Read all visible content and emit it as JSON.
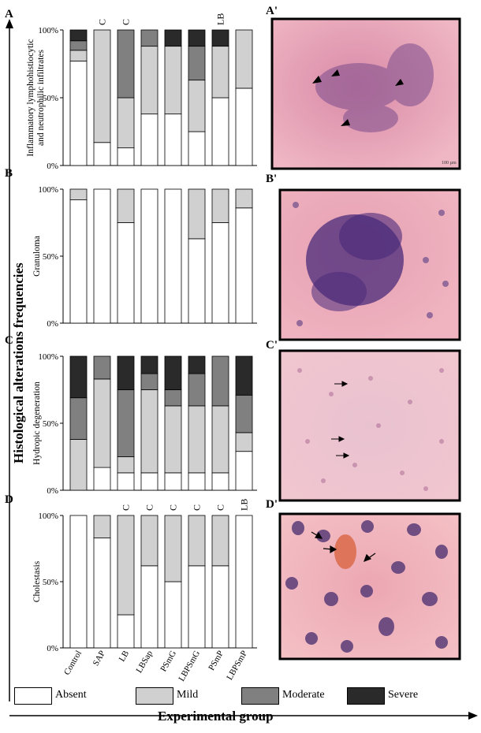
{
  "figure": {
    "y_axis_title": "Histological alterations frequencies",
    "x_axis_title": "Experimental group"
  },
  "legend": [
    {
      "label": "Absent",
      "color": "#ffffff"
    },
    {
      "label": "Mild",
      "color": "#d0d0d0"
    },
    {
      "label": "Moderate",
      "color": "#808080"
    },
    {
      "label": "Severe",
      "color": "#2a2a2a"
    }
  ],
  "chart_data": [
    {
      "type": "bar",
      "stacked": true,
      "panel": "A",
      "ylabel": "Inflammatory lymphohistiocytic and neutrophilic infiltrates",
      "yticks": [
        "0%",
        "50%",
        "100%"
      ],
      "ylim": [
        0,
        100
      ],
      "categories": [
        "Control",
        "SAP",
        "LB",
        "LBSap",
        "PSmG",
        "LBPSmG",
        "PSmP",
        "LBPSmP"
      ],
      "annotations": [
        "",
        "C",
        "C",
        "",
        "",
        "",
        "LB",
        ""
      ],
      "series": [
        {
          "name": "Absent",
          "values": [
            77,
            17,
            13,
            38,
            38,
            25,
            50,
            57
          ]
        },
        {
          "name": "Mild",
          "values": [
            8,
            83,
            37,
            50,
            50,
            38,
            38,
            43
          ]
        },
        {
          "name": "Moderate",
          "values": [
            7,
            0,
            50,
            12,
            0,
            25,
            0,
            0
          ]
        },
        {
          "name": "Severe",
          "values": [
            8,
            0,
            0,
            0,
            12,
            12,
            12,
            0
          ]
        }
      ]
    },
    {
      "type": "bar",
      "stacked": true,
      "panel": "B",
      "ylabel": "Granuloma",
      "yticks": [
        "0%",
        "50%",
        "100%"
      ],
      "ylim": [
        0,
        100
      ],
      "categories": [
        "Control",
        "SAP",
        "LB",
        "LBSap",
        "PSmG",
        "LBPSmG",
        "PSmP",
        "LBPSmP"
      ],
      "annotations": [
        "",
        "",
        "",
        "",
        "",
        "",
        "",
        ""
      ],
      "series": [
        {
          "name": "Absent",
          "values": [
            92,
            100,
            75,
            100,
            100,
            63,
            75,
            86
          ]
        },
        {
          "name": "Mild",
          "values": [
            8,
            0,
            25,
            0,
            0,
            37,
            25,
            14
          ]
        },
        {
          "name": "Moderate",
          "values": [
            0,
            0,
            0,
            0,
            0,
            0,
            0,
            0
          ]
        },
        {
          "name": "Severe",
          "values": [
            0,
            0,
            0,
            0,
            0,
            0,
            0,
            0
          ]
        }
      ]
    },
    {
      "type": "bar",
      "stacked": true,
      "panel": "C",
      "ylabel": "Hydropic degeneration",
      "yticks": [
        "0%",
        "50%",
        "100%"
      ],
      "ylim": [
        0,
        100
      ],
      "categories": [
        "Control",
        "SAP",
        "LB",
        "LBSap",
        "PSmG",
        "LBPSmG",
        "PSmP",
        "LBPSmP"
      ],
      "annotations": [
        "",
        "",
        "",
        "",
        "",
        "",
        "",
        ""
      ],
      "series": [
        {
          "name": "Absent",
          "values": [
            0,
            17,
            13,
            13,
            13,
            13,
            13,
            29
          ]
        },
        {
          "name": "Mild",
          "values": [
            38,
            66,
            12,
            62,
            50,
            50,
            50,
            14
          ]
        },
        {
          "name": "Moderate",
          "values": [
            31,
            17,
            50,
            12,
            12,
            24,
            37,
            28
          ]
        },
        {
          "name": "Severe",
          "values": [
            31,
            0,
            25,
            13,
            25,
            13,
            0,
            29
          ]
        }
      ]
    },
    {
      "type": "bar",
      "stacked": true,
      "panel": "D",
      "ylabel": "Cholestasis",
      "yticks": [
        "0%",
        "50%",
        "100%"
      ],
      "ylim": [
        0,
        100
      ],
      "categories": [
        "Control",
        "SAP",
        "LB",
        "LBSap",
        "PSmG",
        "LBPSmG",
        "PSmP",
        "LBPSmP"
      ],
      "annotations": [
        "",
        "",
        "C",
        "C",
        "C",
        "C",
        "C",
        "LB"
      ],
      "series": [
        {
          "name": "Absent",
          "values": [
            100,
            83,
            25,
            62,
            50,
            62,
            62,
            100
          ]
        },
        {
          "name": "Mild",
          "values": [
            0,
            17,
            75,
            38,
            50,
            38,
            38,
            0
          ]
        },
        {
          "name": "Moderate",
          "values": [
            0,
            0,
            0,
            0,
            0,
            0,
            0,
            0
          ]
        },
        {
          "name": "Severe",
          "values": [
            0,
            0,
            0,
            0,
            0,
            0,
            0,
            0
          ]
        }
      ]
    }
  ],
  "micrographs": [
    {
      "label": "A'"
    },
    {
      "label": "B'"
    },
    {
      "label": "C'"
    },
    {
      "label": "D'"
    }
  ]
}
